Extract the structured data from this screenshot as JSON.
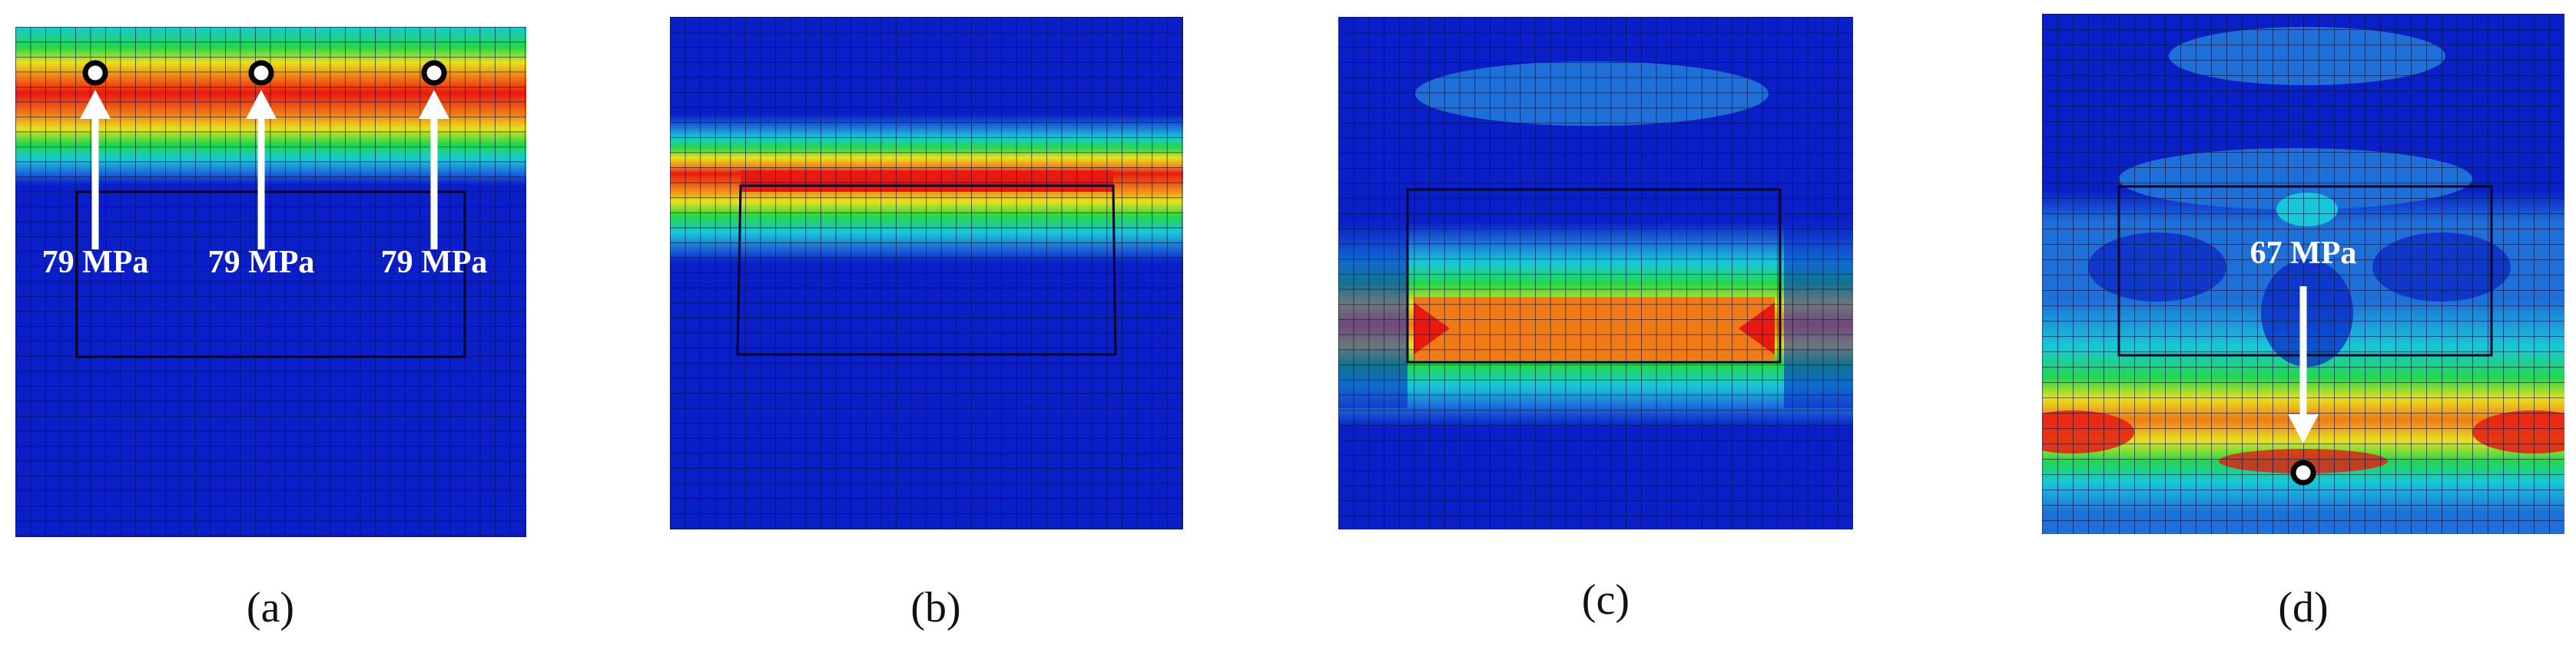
{
  "panels": [
    {
      "id": "a",
      "caption": "(a)",
      "annotations": [
        "79 MPa",
        "79 MPa",
        "79 MPa"
      ]
    },
    {
      "id": "b",
      "caption": "(b)",
      "annotations": []
    },
    {
      "id": "c",
      "caption": "(c)",
      "annotations": []
    },
    {
      "id": "d",
      "caption": "(d)",
      "annotations": [
        "67 MPa"
      ]
    }
  ],
  "colors": {
    "background_blue": "#0a1fc8",
    "light_blue": "#1e6fd8",
    "cyan": "#18c8d8",
    "green": "#22d84a",
    "yellow": "#e8e020",
    "orange": "#f07a18",
    "red": "#e81a10",
    "mesh_line": "#0a0a40",
    "marker_fill": "#ffffff",
    "arrow": "#ffffff"
  }
}
